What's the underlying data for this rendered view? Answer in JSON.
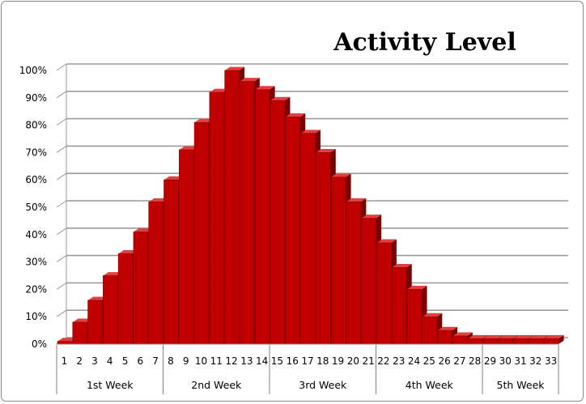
{
  "chart_data": {
    "type": "bar",
    "title": "Activity Level",
    "xlabel": "",
    "ylabel": "",
    "ylim": [
      0,
      100
    ],
    "y_ticks": [
      "0%",
      "10%",
      "20%",
      "30%",
      "40%",
      "50%",
      "60%",
      "70%",
      "80%",
      "90%",
      "100%"
    ],
    "categories": [
      "1",
      "2",
      "3",
      "4",
      "5",
      "6",
      "7",
      "8",
      "9",
      "10",
      "11",
      "12",
      "13",
      "14",
      "15",
      "16",
      "17",
      "18",
      "19",
      "20",
      "21",
      "22",
      "23",
      "24",
      "25",
      "26",
      "27",
      "28",
      "29",
      "30",
      "31",
      "32",
      "33"
    ],
    "values": [
      1,
      8,
      16,
      25,
      33,
      41,
      52,
      60,
      71,
      81,
      92,
      100,
      96,
      93,
      89,
      83,
      77,
      70,
      61,
      52,
      46,
      37,
      28,
      20,
      10,
      5,
      3,
      2,
      2,
      2,
      2,
      2,
      2
    ],
    "groups": [
      {
        "label": "1st Week",
        "start": 0,
        "end": 6
      },
      {
        "label": "2nd Week",
        "start": 7,
        "end": 13
      },
      {
        "label": "3rd Week",
        "start": 14,
        "end": 20
      },
      {
        "label": "4th Week",
        "start": 21,
        "end": 27
      },
      {
        "label": "5th Week",
        "start": 28,
        "end": 32
      }
    ],
    "grid": true,
    "legend": "none",
    "bar_color": "#c00000",
    "bar_side_color": "#7a0000",
    "bar_top_color": "#e04040"
  }
}
